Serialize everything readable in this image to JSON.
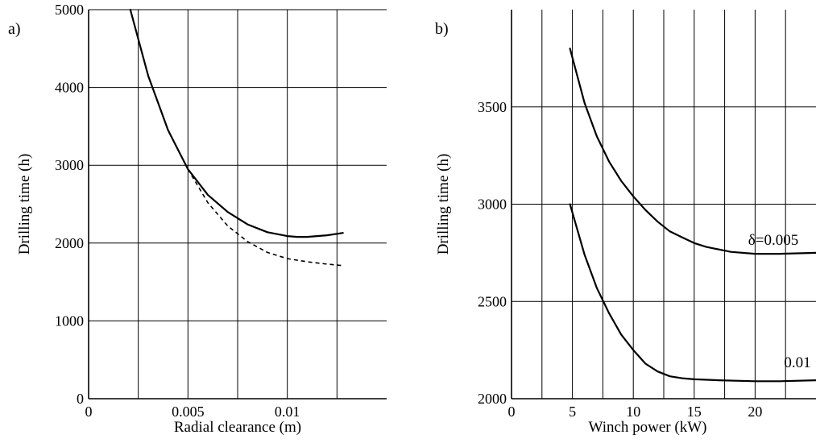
{
  "chart_data": [
    {
      "panel_label": "a)",
      "type": "line",
      "xlabel": "Radial clearance (m)",
      "ylabel": "Drilling time (h)",
      "xlim": [
        0,
        0.015
      ],
      "ylim": [
        0,
        5000
      ],
      "x_ticks": [
        0,
        0.005,
        0.01
      ],
      "x_tick_labels": [
        "0",
        "0.005",
        "0.01"
      ],
      "y_ticks": [
        0,
        1000,
        2000,
        3000,
        4000,
        5000
      ],
      "y_tick_labels": [
        "0",
        "1000",
        "2000",
        "3000",
        "4000",
        "5000"
      ],
      "grid": true,
      "series": [
        {
          "style": "solid",
          "x": [
            0.0021,
            0.003,
            0.004,
            0.005,
            0.006,
            0.007,
            0.008,
            0.009,
            0.01,
            0.0105,
            0.011,
            0.012,
            0.0128
          ],
          "y": [
            5000,
            4150,
            3450,
            2950,
            2620,
            2400,
            2240,
            2140,
            2090,
            2080,
            2080,
            2100,
            2130
          ]
        },
        {
          "style": "dashed",
          "x": [
            0.005,
            0.006,
            0.007,
            0.008,
            0.009,
            0.01,
            0.011,
            0.012,
            0.0128
          ],
          "y": [
            2950,
            2520,
            2220,
            2020,
            1880,
            1800,
            1760,
            1730,
            1710
          ]
        }
      ]
    },
    {
      "panel_label": "b)",
      "type": "line",
      "xlabel": "Winch power (kW)",
      "ylabel": "Drilling time (h)",
      "xlim": [
        0,
        25
      ],
      "ylim": [
        2000,
        4000
      ],
      "x_ticks": [
        0,
        5,
        10,
        15,
        20
      ],
      "x_tick_labels": [
        "0",
        "5",
        "10",
        "15",
        "20"
      ],
      "y_ticks": [
        2000,
        2500,
        3000,
        3500
      ],
      "y_tick_labels": [
        "2000",
        "2500",
        "3000",
        "3500"
      ],
      "grid": true,
      "series": [
        {
          "name": "δ=0.005",
          "x": [
            4.8,
            6,
            7,
            8,
            9,
            10,
            11,
            12,
            13,
            14,
            15,
            16,
            18,
            20,
            22,
            25
          ],
          "y": [
            3800,
            3520,
            3350,
            3220,
            3120,
            3040,
            2970,
            2910,
            2860,
            2830,
            2800,
            2780,
            2755,
            2745,
            2745,
            2750
          ]
        },
        {
          "name": "0.01",
          "x": [
            4.8,
            6,
            7,
            8,
            9,
            10,
            11,
            12,
            13,
            14,
            15,
            17,
            20,
            22,
            25
          ],
          "y": [
            3000,
            2740,
            2570,
            2440,
            2330,
            2250,
            2180,
            2140,
            2115,
            2105,
            2100,
            2095,
            2090,
            2090,
            2095
          ]
        }
      ]
    }
  ]
}
